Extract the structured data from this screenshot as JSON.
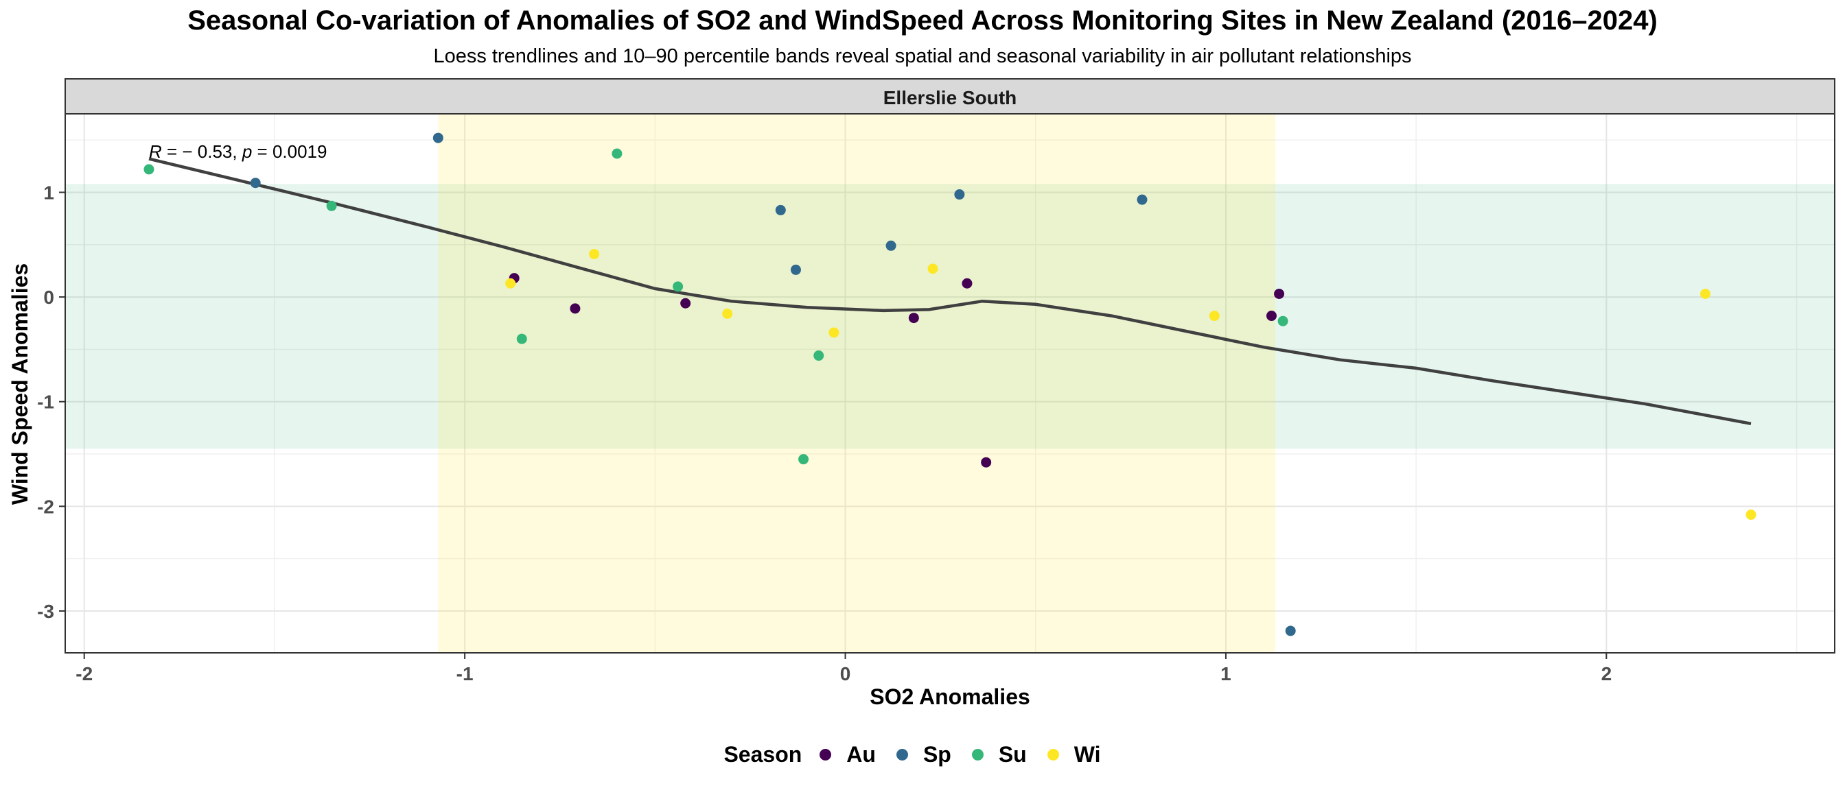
{
  "chart_data": {
    "type": "scatter",
    "title": "Seasonal Co-variation of Anomalies of SO2 and WindSpeed Across Monitoring Sites in New Zealand (2016–2024)",
    "subtitle": "Loess trendlines and 10–90 percentile bands reveal spatial and seasonal variability in air pollutant relationships",
    "facet_label": "Ellerslie South",
    "xlabel": "SO2 Anomalies",
    "ylabel": "Wind Speed Anomalies",
    "xlim": [
      -2.05,
      2.6
    ],
    "ylim": [
      -3.4,
      1.75
    ],
    "x_ticks": [
      -2,
      -1,
      0,
      1,
      2
    ],
    "y_ticks": [
      -3,
      -2,
      -1,
      0,
      1
    ],
    "grid": true,
    "annotation": {
      "r_label": "R",
      "r_value": "= − 0.53,",
      "p_label": "p",
      "p_value": "= 0.0019",
      "x": -1.83,
      "y": 1.33
    },
    "x_band": {
      "from": -1.07,
      "to": 1.13,
      "color": "#fff4d6"
    },
    "y_band": {
      "from": -1.45,
      "to": 1.08,
      "color": "#e6f2ea"
    },
    "legend": {
      "title": "Season",
      "position": "bottom"
    },
    "series": [
      {
        "name": "Au",
        "color": "#440154",
        "points": [
          {
            "x": -0.87,
            "y": 0.18
          },
          {
            "x": -0.71,
            "y": -0.11
          },
          {
            "x": -0.42,
            "y": -0.06
          },
          {
            "x": 0.18,
            "y": -0.2
          },
          {
            "x": 0.32,
            "y": 0.13
          },
          {
            "x": 0.37,
            "y": -1.58
          },
          {
            "x": 1.12,
            "y": -0.18
          },
          {
            "x": 1.14,
            "y": 0.03
          }
        ]
      },
      {
        "name": "Sp",
        "color": "#31688e",
        "points": [
          {
            "x": -1.07,
            "y": 1.52
          },
          {
            "x": -1.55,
            "y": 1.09
          },
          {
            "x": -0.17,
            "y": 0.83
          },
          {
            "x": -0.13,
            "y": 0.26
          },
          {
            "x": 0.12,
            "y": 0.49
          },
          {
            "x": 0.3,
            "y": 0.98
          },
          {
            "x": 0.78,
            "y": 0.93
          },
          {
            "x": 1.17,
            "y": -3.19
          }
        ]
      },
      {
        "name": "Su",
        "color": "#35b779",
        "points": [
          {
            "x": -1.83,
            "y": 1.22
          },
          {
            "x": -1.35,
            "y": 0.87
          },
          {
            "x": -0.6,
            "y": 1.37
          },
          {
            "x": -0.85,
            "y": -0.4
          },
          {
            "x": -0.44,
            "y": 0.1
          },
          {
            "x": -0.07,
            "y": -0.56
          },
          {
            "x": -0.11,
            "y": -1.55
          },
          {
            "x": 1.15,
            "y": -0.23
          }
        ]
      },
      {
        "name": "Wi",
        "color": "#fde725",
        "points": [
          {
            "x": -0.88,
            "y": 0.13
          },
          {
            "x": -0.66,
            "y": 0.41
          },
          {
            "x": -0.31,
            "y": -0.16
          },
          {
            "x": -0.03,
            "y": -0.34
          },
          {
            "x": 0.23,
            "y": 0.27
          },
          {
            "x": 0.97,
            "y": -0.18
          },
          {
            "x": 2.26,
            "y": 0.03
          },
          {
            "x": 2.38,
            "y": -2.08
          }
        ]
      }
    ],
    "trendline": {
      "color": "#404040",
      "points": [
        {
          "x": -1.83,
          "y": 1.32
        },
        {
          "x": -1.6,
          "y": 1.12
        },
        {
          "x": -1.35,
          "y": 0.9
        },
        {
          "x": -1.1,
          "y": 0.67
        },
        {
          "x": -0.9,
          "y": 0.48
        },
        {
          "x": -0.7,
          "y": 0.28
        },
        {
          "x": -0.5,
          "y": 0.08
        },
        {
          "x": -0.3,
          "y": -0.04
        },
        {
          "x": -0.1,
          "y": -0.1
        },
        {
          "x": 0.1,
          "y": -0.13
        },
        {
          "x": 0.22,
          "y": -0.12
        },
        {
          "x": 0.36,
          "y": -0.04
        },
        {
          "x": 0.5,
          "y": -0.07
        },
        {
          "x": 0.7,
          "y": -0.18
        },
        {
          "x": 0.9,
          "y": -0.33
        },
        {
          "x": 1.1,
          "y": -0.48
        },
        {
          "x": 1.3,
          "y": -0.6
        },
        {
          "x": 1.5,
          "y": -0.68
        },
        {
          "x": 1.7,
          "y": -0.8
        },
        {
          "x": 1.9,
          "y": -0.91
        },
        {
          "x": 2.1,
          "y": -1.02
        },
        {
          "x": 2.38,
          "y": -1.21
        }
      ]
    }
  }
}
